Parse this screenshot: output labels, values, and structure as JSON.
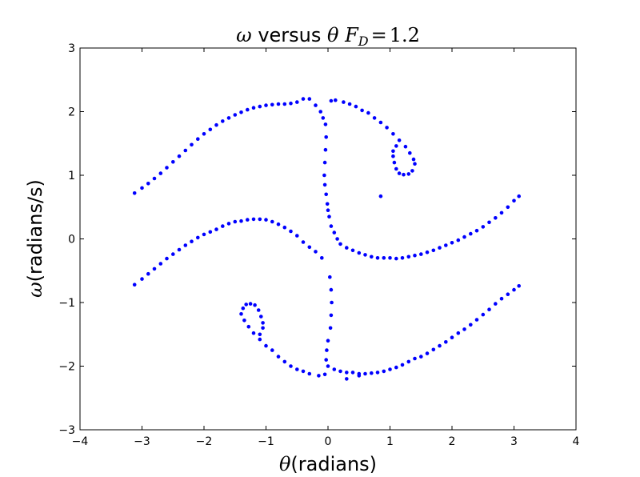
{
  "chart_data": {
    "type": "scatter",
    "title_parts": {
      "symbol_omega": "ω",
      "middle": " versus ",
      "symbol_theta": "θ",
      "space": " ",
      "fd_symbol": "F",
      "fd_sub": "D",
      "equals": "=",
      "fd_value": "1.2"
    },
    "xlabel_parts": {
      "symbol": "θ",
      "text": "(radians)"
    },
    "ylabel_parts": {
      "symbol": "ω",
      "text": "(radians/s)"
    },
    "xlim": [
      -4,
      4
    ],
    "ylim": [
      -3,
      3
    ],
    "xticks": [
      -4,
      -3,
      -2,
      -1,
      0,
      1,
      2,
      3,
      4
    ],
    "yticks": [
      -3,
      -2,
      -1,
      0,
      1,
      2,
      3
    ],
    "xtick_labels": [
      "−4",
      "−3",
      "−2",
      "−1",
      "0",
      "1",
      "2",
      "3",
      "4"
    ],
    "ytick_labels": [
      "−3",
      "−2",
      "−1",
      "0",
      "1",
      "2",
      "3"
    ],
    "grid": false,
    "marker_color": "#0000ff",
    "series": [
      {
        "points": [
          [
            -3.12,
            0.72
          ],
          [
            -3.0,
            0.8
          ],
          [
            -2.9,
            0.87
          ],
          [
            -2.8,
            0.95
          ],
          [
            -2.7,
            1.03
          ],
          [
            -2.6,
            1.12
          ],
          [
            -2.5,
            1.21
          ],
          [
            -2.4,
            1.3
          ],
          [
            -2.3,
            1.39
          ],
          [
            -2.2,
            1.48
          ],
          [
            -2.1,
            1.57
          ],
          [
            -2.0,
            1.65
          ],
          [
            -1.9,
            1.72
          ],
          [
            -1.8,
            1.79
          ],
          [
            -1.7,
            1.85
          ],
          [
            -1.6,
            1.9
          ],
          [
            -1.5,
            1.95
          ],
          [
            -1.4,
            1.99
          ],
          [
            -1.3,
            2.03
          ],
          [
            -1.2,
            2.06
          ],
          [
            -1.1,
            2.08
          ],
          [
            -1.0,
            2.1
          ],
          [
            -0.9,
            2.11
          ],
          [
            -0.8,
            2.12
          ],
          [
            -0.7,
            2.12
          ],
          [
            -0.6,
            2.13
          ],
          [
            -0.5,
            2.15
          ],
          [
            -0.4,
            2.2
          ],
          [
            -0.3,
            2.2
          ],
          [
            -0.2,
            2.1
          ],
          [
            -0.12,
            2.0
          ],
          [
            -0.08,
            1.9
          ],
          [
            -0.04,
            1.8
          ],
          [
            -0.03,
            1.6
          ],
          [
            -0.04,
            1.4
          ],
          [
            -0.05,
            1.2
          ],
          [
            -0.06,
            1.0
          ],
          [
            -0.05,
            0.85
          ],
          [
            -0.03,
            0.7
          ],
          [
            -0.01,
            0.55
          ],
          [
            0.0,
            0.45
          ],
          [
            0.02,
            0.35
          ],
          [
            0.05,
            0.2
          ],
          [
            0.1,
            0.1
          ],
          [
            0.15,
            0.0
          ],
          [
            0.2,
            -0.08
          ],
          [
            0.3,
            -0.14
          ],
          [
            0.4,
            -0.18
          ],
          [
            0.5,
            -0.22
          ],
          [
            0.6,
            -0.25
          ],
          [
            0.7,
            -0.28
          ],
          [
            0.8,
            -0.3
          ],
          [
            0.9,
            -0.3
          ],
          [
            1.0,
            -0.3
          ],
          [
            1.1,
            -0.31
          ],
          [
            1.2,
            -0.3
          ],
          [
            1.3,
            -0.28
          ],
          [
            1.4,
            -0.26
          ],
          [
            1.5,
            -0.24
          ],
          [
            1.6,
            -0.21
          ],
          [
            1.7,
            -0.18
          ],
          [
            1.8,
            -0.14
          ],
          [
            1.9,
            -0.1
          ],
          [
            2.0,
            -0.06
          ],
          [
            2.1,
            -0.02
          ],
          [
            2.2,
            0.03
          ],
          [
            2.3,
            0.08
          ],
          [
            2.4,
            0.13
          ],
          [
            2.5,
            0.19
          ],
          [
            2.6,
            0.26
          ],
          [
            2.7,
            0.33
          ],
          [
            2.8,
            0.41
          ],
          [
            2.9,
            0.5
          ],
          [
            3.0,
            0.6
          ],
          [
            3.08,
            0.67
          ],
          [
            0.05,
            2.17
          ],
          [
            0.12,
            2.18
          ],
          [
            0.25,
            2.15
          ],
          [
            0.35,
            2.12
          ],
          [
            0.45,
            2.08
          ],
          [
            0.55,
            2.02
          ],
          [
            0.65,
            1.98
          ],
          [
            0.75,
            1.9
          ],
          [
            0.85,
            1.83
          ],
          [
            0.95,
            1.75
          ],
          [
            1.05,
            1.65
          ],
          [
            1.15,
            1.55
          ],
          [
            1.25,
            1.45
          ],
          [
            1.32,
            1.35
          ],
          [
            1.38,
            1.25
          ],
          [
            1.4,
            1.18
          ],
          [
            1.36,
            1.07
          ],
          [
            1.3,
            1.02
          ],
          [
            1.22,
            1.01
          ],
          [
            1.15,
            1.03
          ],
          [
            1.1,
            1.1
          ],
          [
            1.07,
            1.2
          ],
          [
            1.05,
            1.3
          ],
          [
            1.05,
            1.38
          ],
          [
            1.1,
            1.46
          ],
          [
            0.85,
            0.67
          ]
        ]
      },
      {
        "points": [
          [
            -3.12,
            -0.72
          ],
          [
            -3.0,
            -0.63
          ],
          [
            -2.9,
            -0.55
          ],
          [
            -2.8,
            -0.47
          ],
          [
            -2.7,
            -0.39
          ],
          [
            -2.6,
            -0.31
          ],
          [
            -2.5,
            -0.24
          ],
          [
            -2.4,
            -0.17
          ],
          [
            -2.3,
            -0.1
          ],
          [
            -2.2,
            -0.04
          ],
          [
            -2.1,
            0.02
          ],
          [
            -2.0,
            0.07
          ],
          [
            -1.9,
            0.11
          ],
          [
            -1.8,
            0.15
          ],
          [
            -1.7,
            0.2
          ],
          [
            -1.6,
            0.24
          ],
          [
            -1.5,
            0.27
          ],
          [
            -1.4,
            0.28
          ],
          [
            -1.3,
            0.3
          ],
          [
            -1.2,
            0.31
          ],
          [
            -1.1,
            0.31
          ],
          [
            -1.0,
            0.3
          ],
          [
            -0.9,
            0.27
          ],
          [
            -0.8,
            0.23
          ],
          [
            -0.7,
            0.18
          ],
          [
            -0.6,
            0.12
          ],
          [
            -0.5,
            0.05
          ],
          [
            -0.4,
            -0.05
          ],
          [
            -0.3,
            -0.13
          ],
          [
            -0.2,
            -0.2
          ],
          [
            -0.1,
            -0.3
          ],
          [
            0.03,
            -0.6
          ],
          [
            0.05,
            -0.8
          ],
          [
            0.06,
            -1.0
          ],
          [
            0.05,
            -1.2
          ],
          [
            0.04,
            -1.4
          ],
          [
            0.0,
            -1.6
          ],
          [
            -0.02,
            -1.75
          ],
          [
            -0.03,
            -1.9
          ],
          [
            0.0,
            -2.0
          ],
          [
            0.1,
            -2.05
          ],
          [
            0.2,
            -2.08
          ],
          [
            0.3,
            -2.1
          ],
          [
            0.4,
            -2.1
          ],
          [
            0.5,
            -2.12
          ],
          [
            0.6,
            -2.12
          ],
          [
            0.7,
            -2.11
          ],
          [
            0.8,
            -2.1
          ],
          [
            0.9,
            -2.08
          ],
          [
            1.0,
            -2.05
          ],
          [
            1.1,
            -2.02
          ],
          [
            1.2,
            -1.98
          ],
          [
            1.3,
            -1.93
          ],
          [
            1.4,
            -1.88
          ],
          [
            1.5,
            -1.85
          ],
          [
            1.6,
            -1.8
          ],
          [
            1.7,
            -1.74
          ],
          [
            1.8,
            -1.68
          ],
          [
            1.9,
            -1.62
          ],
          [
            2.0,
            -1.55
          ],
          [
            2.1,
            -1.48
          ],
          [
            2.2,
            -1.42
          ],
          [
            2.3,
            -1.35
          ],
          [
            2.4,
            -1.27
          ],
          [
            2.5,
            -1.19
          ],
          [
            2.6,
            -1.11
          ],
          [
            2.7,
            -1.02
          ],
          [
            2.8,
            -0.94
          ],
          [
            2.9,
            -0.87
          ],
          [
            3.0,
            -0.8
          ],
          [
            3.08,
            -0.74
          ],
          [
            -0.05,
            -2.13
          ],
          [
            -0.15,
            -2.15
          ],
          [
            -0.3,
            -2.12
          ],
          [
            -0.4,
            -2.08
          ],
          [
            -0.5,
            -2.05
          ],
          [
            -0.6,
            -2.0
          ],
          [
            -0.7,
            -1.93
          ],
          [
            -0.8,
            -1.85
          ],
          [
            -0.9,
            -1.75
          ],
          [
            -1.0,
            -1.68
          ],
          [
            -1.1,
            -1.58
          ],
          [
            -1.2,
            -1.48
          ],
          [
            -1.28,
            -1.38
          ],
          [
            -1.35,
            -1.28
          ],
          [
            -1.4,
            -1.18
          ],
          [
            -1.37,
            -1.09
          ],
          [
            -1.32,
            -1.03
          ],
          [
            -1.25,
            -1.02
          ],
          [
            -1.18,
            -1.04
          ],
          [
            -1.12,
            -1.12
          ],
          [
            -1.08,
            -1.22
          ],
          [
            -1.05,
            -1.32
          ],
          [
            -1.05,
            -1.4
          ],
          [
            -1.1,
            -1.5
          ],
          [
            0.3,
            -2.2
          ],
          [
            0.5,
            -2.15
          ]
        ]
      }
    ]
  }
}
